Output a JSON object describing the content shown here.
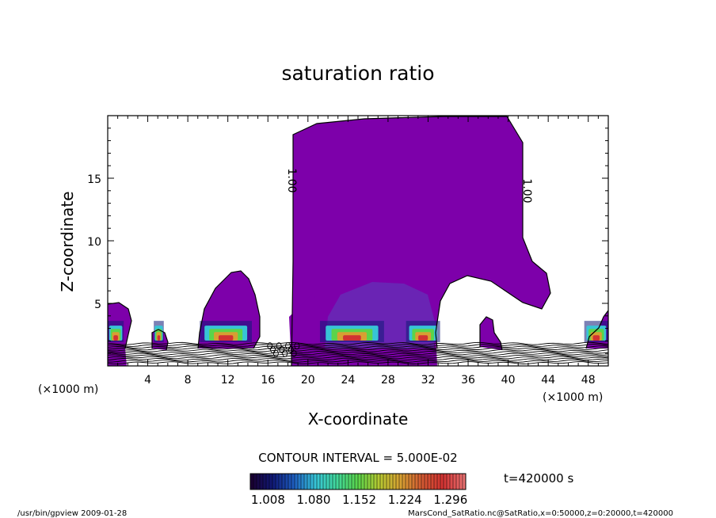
{
  "chart_data": {
    "type": "contour",
    "title": "saturation ratio",
    "xlabel": "X-coordinate",
    "ylabel": "Z-coordinate",
    "x_unit": "(×1000 m)",
    "y_unit": "(×1000 m)",
    "xlim": [
      0,
      50
    ],
    "ylim": [
      0,
      20
    ],
    "x_ticks": [
      4,
      8,
      12,
      16,
      20,
      24,
      28,
      32,
      36,
      40,
      44,
      48
    ],
    "y_ticks": [
      5,
      10,
      15
    ],
    "contour_interval_text": "CONTOUR INTERVAL = 5.000E-02",
    "contour_labels": [
      "1.00",
      "1.00"
    ],
    "colorbar": {
      "tick_labels": [
        "1.008",
        "1.080",
        "1.152",
        "1.224",
        "1.296"
      ],
      "range": [
        0.98,
        1.32
      ],
      "colors": [
        "#1a0033",
        "#101a78",
        "#1e5fc0",
        "#37c4d6",
        "#41d69a",
        "#5ad44a",
        "#b6c832",
        "#d6a032",
        "#d25a32",
        "#d23232",
        "#e87070"
      ]
    },
    "time_label": "t=420000 s",
    "grid": false
  },
  "footer": {
    "left": "/usr/bin/gpview   2009-01-28",
    "right": "MarsCond_SatRatio.nc@SatRatio,x=0:50000,z=0:20000,t=420000"
  },
  "colors": {
    "fill": "#7d00aa",
    "fill_inner": "#6a24b4"
  }
}
